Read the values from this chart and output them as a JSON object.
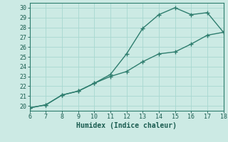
{
  "xlabel": "Humidex (Indice chaleur)",
  "bg_color": "#cceae4",
  "line_color": "#2e7d6e",
  "grid_color": "#a8d8d0",
  "text_color": "#1a5c50",
  "spine_color": "#2e7d6e",
  "xlim": [
    6,
    18
  ],
  "ylim": [
    19.5,
    30.5
  ],
  "xticks": [
    6,
    7,
    8,
    9,
    10,
    11,
    12,
    13,
    14,
    15,
    16,
    17,
    18
  ],
  "yticks": [
    20,
    21,
    22,
    23,
    24,
    25,
    26,
    27,
    28,
    29,
    30
  ],
  "line1_x": [
    6,
    7,
    8,
    9,
    10,
    11,
    12,
    13,
    14,
    15,
    16,
    17,
    18
  ],
  "line1_y": [
    19.8,
    20.1,
    21.1,
    21.5,
    22.3,
    23.2,
    25.3,
    27.9,
    29.3,
    30.0,
    29.3,
    29.5,
    27.5
  ],
  "line2_x": [
    6,
    7,
    8,
    9,
    10,
    11,
    12,
    13,
    14,
    15,
    16,
    17,
    18
  ],
  "line2_y": [
    19.8,
    20.1,
    21.1,
    21.5,
    22.3,
    23.0,
    23.5,
    24.5,
    25.3,
    25.5,
    26.3,
    27.2,
    27.5
  ],
  "label_fontsize": 6.5,
  "tick_fontsize": 6.0,
  "xlabel_fontsize": 7.0
}
